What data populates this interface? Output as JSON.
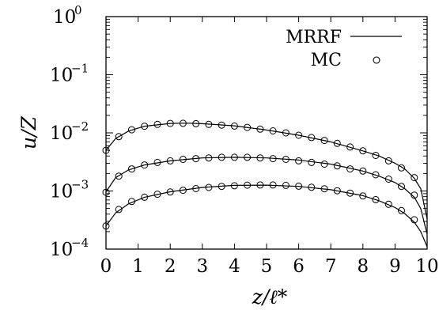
{
  "chart_data": {
    "type": "line",
    "xlabel": "z/ℓ*",
    "ylabel": "u/Z",
    "xlim": [
      0,
      10
    ],
    "ylim": [
      0.0001,
      1
    ],
    "y_scale": "log",
    "x_ticks": [
      "0",
      "1",
      "2",
      "3",
      "4",
      "5",
      "6",
      "7",
      "8",
      "9",
      "10"
    ],
    "y_ticks": [
      {
        "base": "10",
        "exp": "0"
      },
      {
        "base": "10",
        "exp": "−1"
      },
      {
        "base": "10",
        "exp": "−2"
      },
      {
        "base": "10",
        "exp": "−3"
      },
      {
        "base": "10",
        "exp": "−4"
      }
    ],
    "grid": false,
    "legend": {
      "position": "top-right",
      "entries": [
        {
          "label": "MRRF",
          "marker": "line"
        },
        {
          "label": "MC",
          "marker": "open-circle"
        }
      ]
    },
    "series": [
      {
        "curve": "upper",
        "style": "line",
        "x": [
          0,
          0.3,
          0.7,
          1.2,
          2,
          2.5,
          3,
          4,
          5,
          6,
          7,
          8,
          8.5,
          9,
          9.3,
          9.6,
          9.8,
          10
        ],
        "y": [
          0.005,
          0.008,
          0.0107,
          0.013,
          0.0145,
          0.0147,
          0.0144,
          0.0132,
          0.0112,
          0.0091,
          0.007,
          0.0049,
          0.004,
          0.003,
          0.0024,
          0.00165,
          0.0011,
          0.00033
        ]
      },
      {
        "curve": "upper",
        "style": "markers",
        "x": [
          0,
          0.4,
          0.8,
          1.2,
          1.6,
          2,
          2.4,
          2.8,
          3.2,
          3.6,
          4,
          4.4,
          4.8,
          5.2,
          5.6,
          6,
          6.4,
          6.8,
          7.2,
          7.6,
          8,
          8.4,
          8.8,
          9.2,
          9.6
        ],
        "y": [
          0.005,
          0.0086,
          0.0113,
          0.013,
          0.014,
          0.0145,
          0.0146,
          0.0144,
          0.014,
          0.0136,
          0.0131,
          0.0124,
          0.0116,
          0.0108,
          0.01,
          0.0091,
          0.0083,
          0.0074,
          0.0066,
          0.0057,
          0.0049,
          0.0041,
          0.0033,
          0.0025,
          0.0017
        ]
      },
      {
        "curve": "middle",
        "style": "line",
        "x": [
          0,
          0.3,
          0.7,
          1.2,
          2,
          3,
          4,
          5,
          6,
          7,
          8,
          8.5,
          9,
          9.3,
          9.6,
          9.8,
          10
        ],
        "y": [
          0.00097,
          0.0017,
          0.0023,
          0.0028,
          0.0033,
          0.0037,
          0.0038,
          0.0037,
          0.0034,
          0.0029,
          0.0022,
          0.0018,
          0.0014,
          0.0011,
          0.00078,
          0.0005,
          0.00018
        ]
      },
      {
        "curve": "middle",
        "style": "markers",
        "x": [
          0,
          0.4,
          0.8,
          1.2,
          1.6,
          2,
          2.4,
          2.8,
          3.2,
          3.6,
          4,
          4.4,
          4.8,
          5.2,
          5.6,
          6,
          6.4,
          6.8,
          7.2,
          7.6,
          8,
          8.4,
          8.8,
          9.2,
          9.6
        ],
        "y": [
          0.00095,
          0.0018,
          0.0024,
          0.0028,
          0.0031,
          0.0033,
          0.0035,
          0.0036,
          0.0037,
          0.0038,
          0.0038,
          0.0038,
          0.0037,
          0.0036,
          0.0035,
          0.0033,
          0.0031,
          0.0029,
          0.0027,
          0.0024,
          0.0022,
          0.0019,
          0.0016,
          0.0012,
          0.00085
        ]
      },
      {
        "curve": "lower",
        "style": "line",
        "x": [
          0,
          0.3,
          0.7,
          1.2,
          2,
          3,
          4,
          5,
          6,
          7,
          8,
          8.5,
          9,
          9.3,
          9.6,
          9.8,
          10
        ],
        "y": [
          0.00025,
          0.00042,
          0.0006,
          0.00078,
          0.00097,
          0.00115,
          0.00125,
          0.00126,
          0.0012,
          0.00105,
          0.00083,
          0.00068,
          0.00052,
          0.00041,
          0.00029,
          0.0002,
          0.00011
        ]
      },
      {
        "curve": "lower",
        "style": "markers",
        "x": [
          0,
          0.4,
          0.8,
          1.2,
          1.6,
          2,
          2.4,
          2.8,
          3.2,
          3.6,
          4,
          4.4,
          4.8,
          5.2,
          5.6,
          6,
          6.4,
          6.8,
          7.2,
          7.6,
          8,
          8.4,
          8.8,
          9.2,
          9.6
        ],
        "y": [
          0.00025,
          0.00048,
          0.00066,
          0.00078,
          0.00088,
          0.00096,
          0.00103,
          0.0011,
          0.00115,
          0.0012,
          0.00123,
          0.00126,
          0.00127,
          0.00127,
          0.00125,
          0.00121,
          0.00116,
          0.00109,
          0.00101,
          0.00092,
          0.00082,
          0.00071,
          0.00059,
          0.00046,
          0.00032
        ]
      }
    ]
  }
}
